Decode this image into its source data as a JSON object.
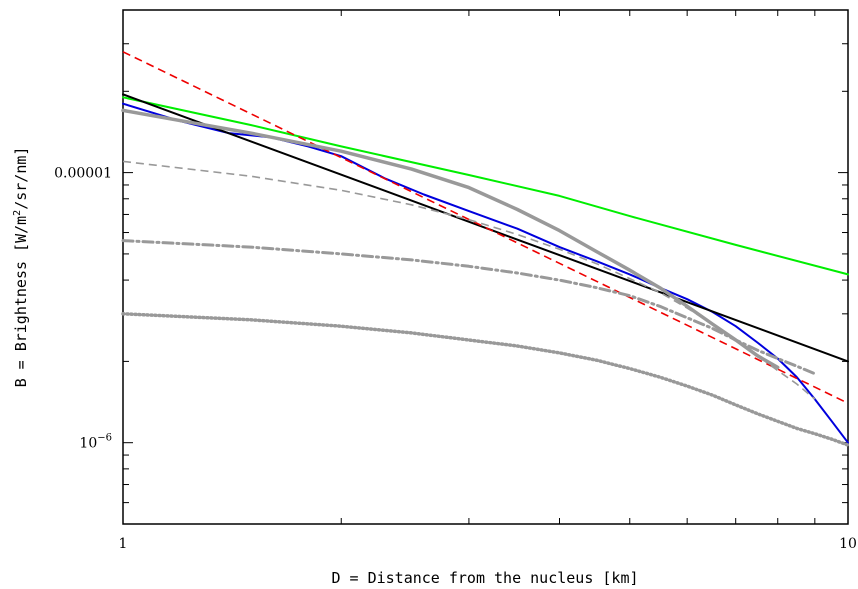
{
  "chart_data": {
    "type": "line",
    "xlabel": "D = Distance from the nucleus [km]",
    "ylabel_parts": {
      "prefix": "B = Brightness [W/m",
      "sup": "2",
      "suffix": "/sr/nm]"
    },
    "x_scale": "log",
    "y_scale": "log",
    "xlim": [
      1,
      10
    ],
    "ylim": [
      5e-07,
      4e-05
    ],
    "x_ticks": [
      {
        "value": 1,
        "label": "1"
      },
      {
        "value": 10,
        "label": "10"
      }
    ],
    "y_ticks": [
      {
        "value": 1e-05,
        "label": "0.00001"
      },
      {
        "value": 1e-06,
        "label_base": "10",
        "label_exp": "−6"
      }
    ],
    "grid": false,
    "legend": "none",
    "series": [
      {
        "style": "solid-thin",
        "color": "#00ee00",
        "x": [
          1,
          1.5,
          2,
          3,
          4,
          5,
          7,
          10
        ],
        "y": [
          1.9e-05,
          1.5e-05,
          1.25e-05,
          9.8e-06,
          8.2e-06,
          6.9e-06,
          5.4e-06,
          4.2e-06
        ]
      },
      {
        "style": "solid-thin",
        "color": "#0000dd",
        "x": [
          1,
          1.2,
          1.4,
          1.6,
          1.8,
          2,
          2.3,
          2.6,
          3,
          3.5,
          4,
          4.5,
          5,
          5.5,
          6,
          6.5,
          7,
          7.5,
          8,
          8.5,
          9,
          9.5,
          10
        ],
        "y": [
          1.8e-05,
          1.55e-05,
          1.4e-05,
          1.35e-05,
          1.25e-05,
          1.15e-05,
          9.5e-06,
          8.3e-06,
          7.2e-06,
          6.2e-06,
          5.3e-06,
          4.7e-06,
          4.2e-06,
          3.75e-06,
          3.4e-06,
          3.05e-06,
          2.7e-06,
          2.35e-06,
          2.05e-06,
          1.75e-06,
          1.45e-06,
          1.2e-06,
          1e-06
        ]
      },
      {
        "style": "solid-thin",
        "color": "#000000",
        "x": [
          1,
          10
        ],
        "y": [
          1.95e-05,
          2e-06
        ]
      },
      {
        "style": "dashed",
        "color": "#ee0000",
        "x": [
          1,
          10
        ],
        "y": [
          2.8e-05,
          1.4e-06
        ]
      },
      {
        "style": "solid-thick",
        "color": "#999999",
        "x": [
          1,
          1.5,
          2,
          2.5,
          3,
          3.5,
          4,
          4.5,
          5,
          5.5,
          6,
          6.5,
          7,
          7.5,
          8
        ],
        "y": [
          1.7e-05,
          1.4e-05,
          1.2e-05,
          1.03e-05,
          8.8e-06,
          7.3e-06,
          6.1e-06,
          5.1e-06,
          4.35e-06,
          3.75e-06,
          3.2e-06,
          2.75e-06,
          2.4e-06,
          2.1e-06,
          1.9e-06
        ]
      },
      {
        "style": "dashed",
        "color": "#999999",
        "x": [
          1,
          1.5,
          2,
          2.5,
          3,
          3.5,
          4,
          4.5,
          5,
          5.5,
          6,
          6.5,
          7,
          7.5,
          8,
          8.5,
          9
        ],
        "y": [
          1.1e-05,
          9.7e-06,
          8.6e-06,
          7.6e-06,
          6.7e-06,
          5.9e-06,
          5.2e-06,
          4.6e-06,
          4.05e-06,
          3.6e-06,
          3.15e-06,
          2.75e-06,
          2.4e-06,
          2.1e-06,
          1.85e-06,
          1.65e-06,
          1.45e-06
        ]
      },
      {
        "style": "dash-dot",
        "color": "#999999",
        "x": [
          1,
          1.5,
          2,
          2.5,
          3,
          3.5,
          4,
          4.5,
          5,
          5.5,
          6,
          6.5,
          7,
          7.5,
          8,
          8.5,
          9
        ],
        "y": [
          5.6e-06,
          5.3e-06,
          5e-06,
          4.75e-06,
          4.5e-06,
          4.25e-06,
          4e-06,
          3.75e-06,
          3.5e-06,
          3.2e-06,
          2.9e-06,
          2.65e-06,
          2.4e-06,
          2.2e-06,
          2.05e-06,
          1.92e-06,
          1.8e-06
        ]
      },
      {
        "style": "dotted-thick",
        "color": "#999999",
        "x": [
          1,
          1.5,
          2,
          2.5,
          3,
          3.5,
          4,
          4.5,
          5,
          5.5,
          6,
          6.5,
          7,
          7.5,
          8,
          8.5,
          9,
          9.5,
          10
        ],
        "y": [
          3e-06,
          2.85e-06,
          2.7e-06,
          2.55e-06,
          2.4e-06,
          2.28e-06,
          2.15e-06,
          2.02e-06,
          1.88e-06,
          1.75e-06,
          1.62e-06,
          1.5e-06,
          1.38e-06,
          1.28e-06,
          1.2e-06,
          1.13e-06,
          1.08e-06,
          1.03e-06,
          9.8e-07
        ]
      }
    ]
  }
}
